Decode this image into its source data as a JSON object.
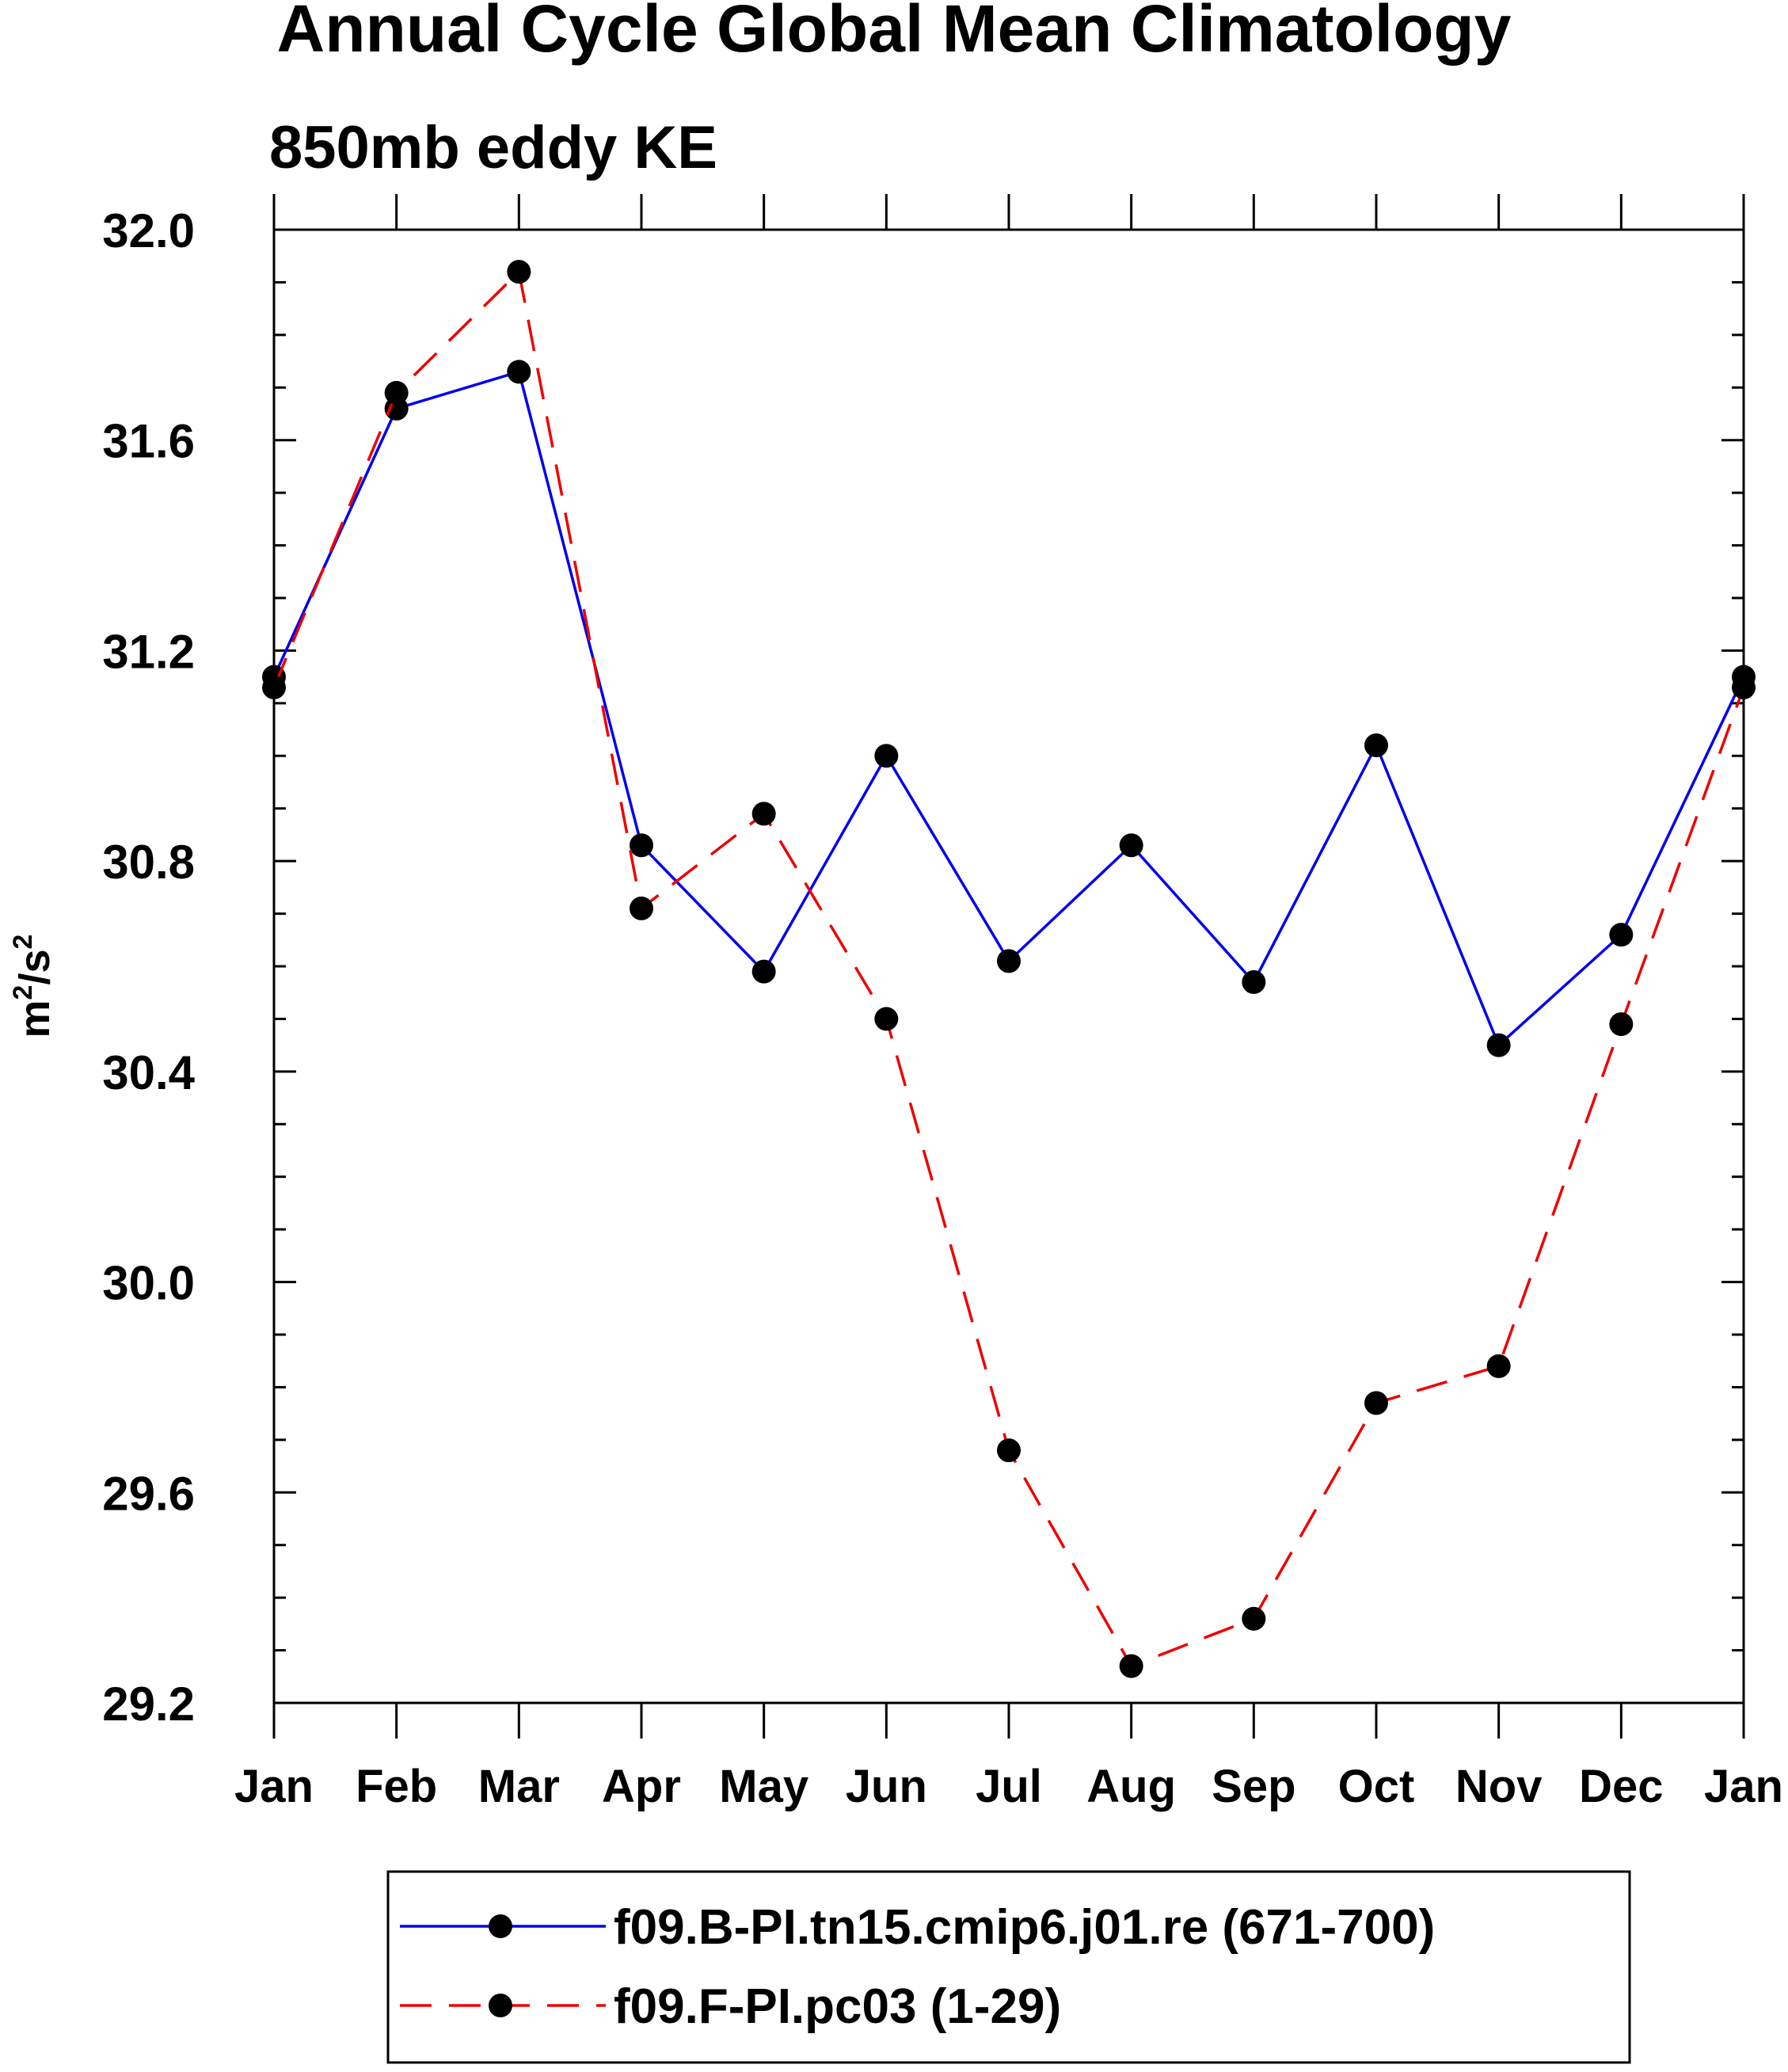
{
  "chart_data": {
    "type": "line",
    "title": "Annual Cycle Global Mean Climatology",
    "subtitle": "850mb eddy KE",
    "ylabel": {
      "base": "m",
      "sup1": "2",
      "mid": "/s",
      "sup2": "2"
    },
    "xlabel": "",
    "categories": [
      "Jan",
      "Feb",
      "Mar",
      "Apr",
      "May",
      "Jun",
      "Jul",
      "Aug",
      "Sep",
      "Oct",
      "Nov",
      "Dec",
      "Jan"
    ],
    "ylim": [
      29.2,
      32.0
    ],
    "yticks": [
      29.2,
      29.6,
      30.0,
      30.4,
      30.8,
      31.2,
      31.6,
      32.0
    ],
    "ytick_labels": [
      "29.2",
      "29.6",
      "30.0",
      "30.4",
      "30.8",
      "31.2",
      "31.6",
      "32.0"
    ],
    "yminor_step": 0.1,
    "grid": false,
    "legend_position": "bottom",
    "series": [
      {
        "name": "f09.B-PI.tn15.cmip6.j01.re (671-700)",
        "color": "#0000ee",
        "dash": "solid",
        "values": [
          31.15,
          31.66,
          31.73,
          30.83,
          30.59,
          31.0,
          30.61,
          30.83,
          30.57,
          31.02,
          30.45,
          30.66,
          31.15
        ]
      },
      {
        "name": "f09.F-PI.pc03 (1-29)",
        "color": "#ee0000",
        "dash": "dashed",
        "values": [
          31.13,
          31.69,
          31.92,
          30.71,
          30.89,
          30.5,
          29.68,
          29.27,
          29.36,
          29.77,
          29.84,
          30.49,
          31.13
        ]
      }
    ]
  }
}
